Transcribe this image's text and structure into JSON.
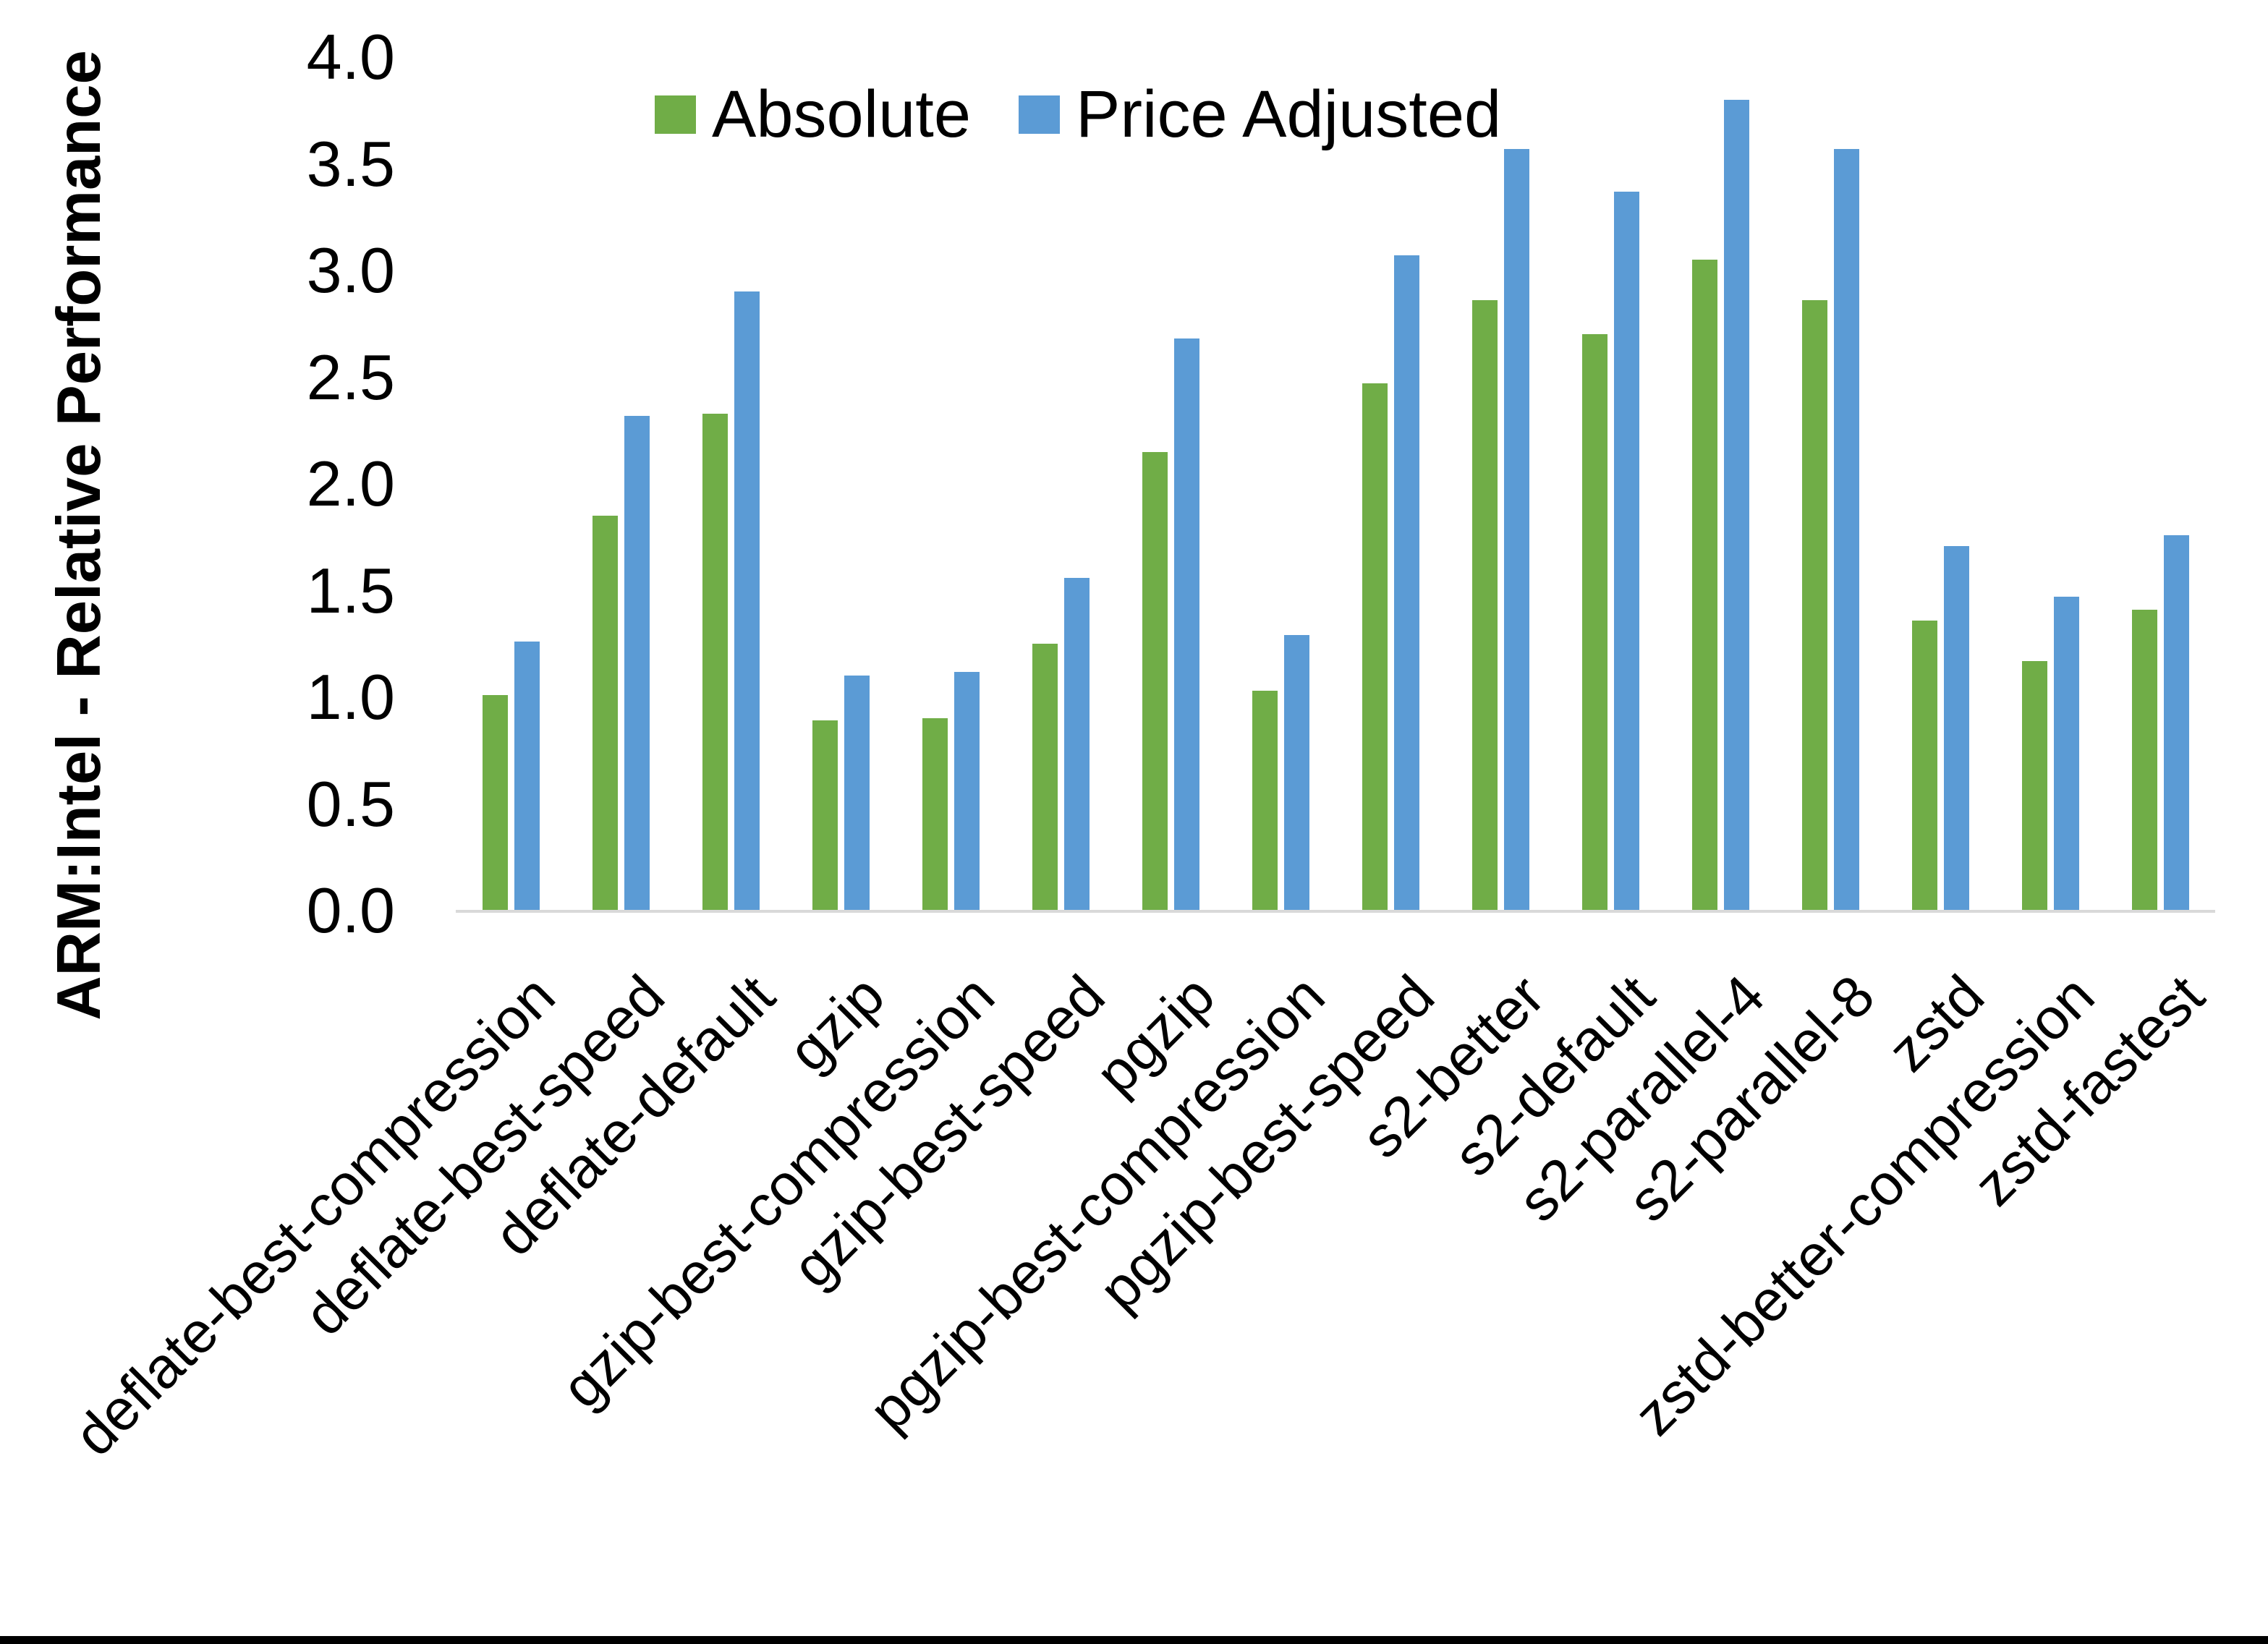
{
  "chart_data": {
    "type": "bar",
    "title": "",
    "ylabel": "ARM:Intel - Relative Performance",
    "xlabel": "",
    "ylim": [
      0.0,
      4.0
    ],
    "ytick_interval": 0.5,
    "ytick_labels": [
      "0.0",
      "0.5",
      "1.0",
      "1.5",
      "2.0",
      "2.5",
      "3.0",
      "3.5",
      "4.0"
    ],
    "grid": false,
    "legend_position": "top-center",
    "background_color": "#FFFFFF",
    "text_color": "#000000",
    "axis_line_color": "#D9D9D9",
    "bottom_border_color": "#000000",
    "categories": [
      "deflate-best-compression",
      "deflate-best-speed",
      "deflate-default",
      "gzip",
      "gzip-best-compression",
      "gzip-best-speed",
      "pgzip",
      "pgzip-best-compression",
      "pgzip-best-speed",
      "s2-better",
      "s2-default",
      "s2-parallel-4",
      "s2-parallel-8",
      "zstd",
      "zstd-better-compression",
      "zstd-fastest"
    ],
    "series": [
      {
        "name": "Absolute",
        "color": "#70AD47",
        "values": [
          1.01,
          1.85,
          2.33,
          0.89,
          0.9,
          1.25,
          2.15,
          1.03,
          2.47,
          2.86,
          2.7,
          3.05,
          2.86,
          1.36,
          1.17,
          1.41
        ]
      },
      {
        "name": "Price Adjusted",
        "color": "#5B9BD5",
        "values": [
          1.26,
          2.32,
          2.9,
          1.1,
          1.12,
          1.56,
          2.68,
          1.29,
          3.07,
          3.57,
          3.37,
          3.8,
          3.57,
          1.71,
          1.47,
          1.76
        ]
      }
    ]
  }
}
